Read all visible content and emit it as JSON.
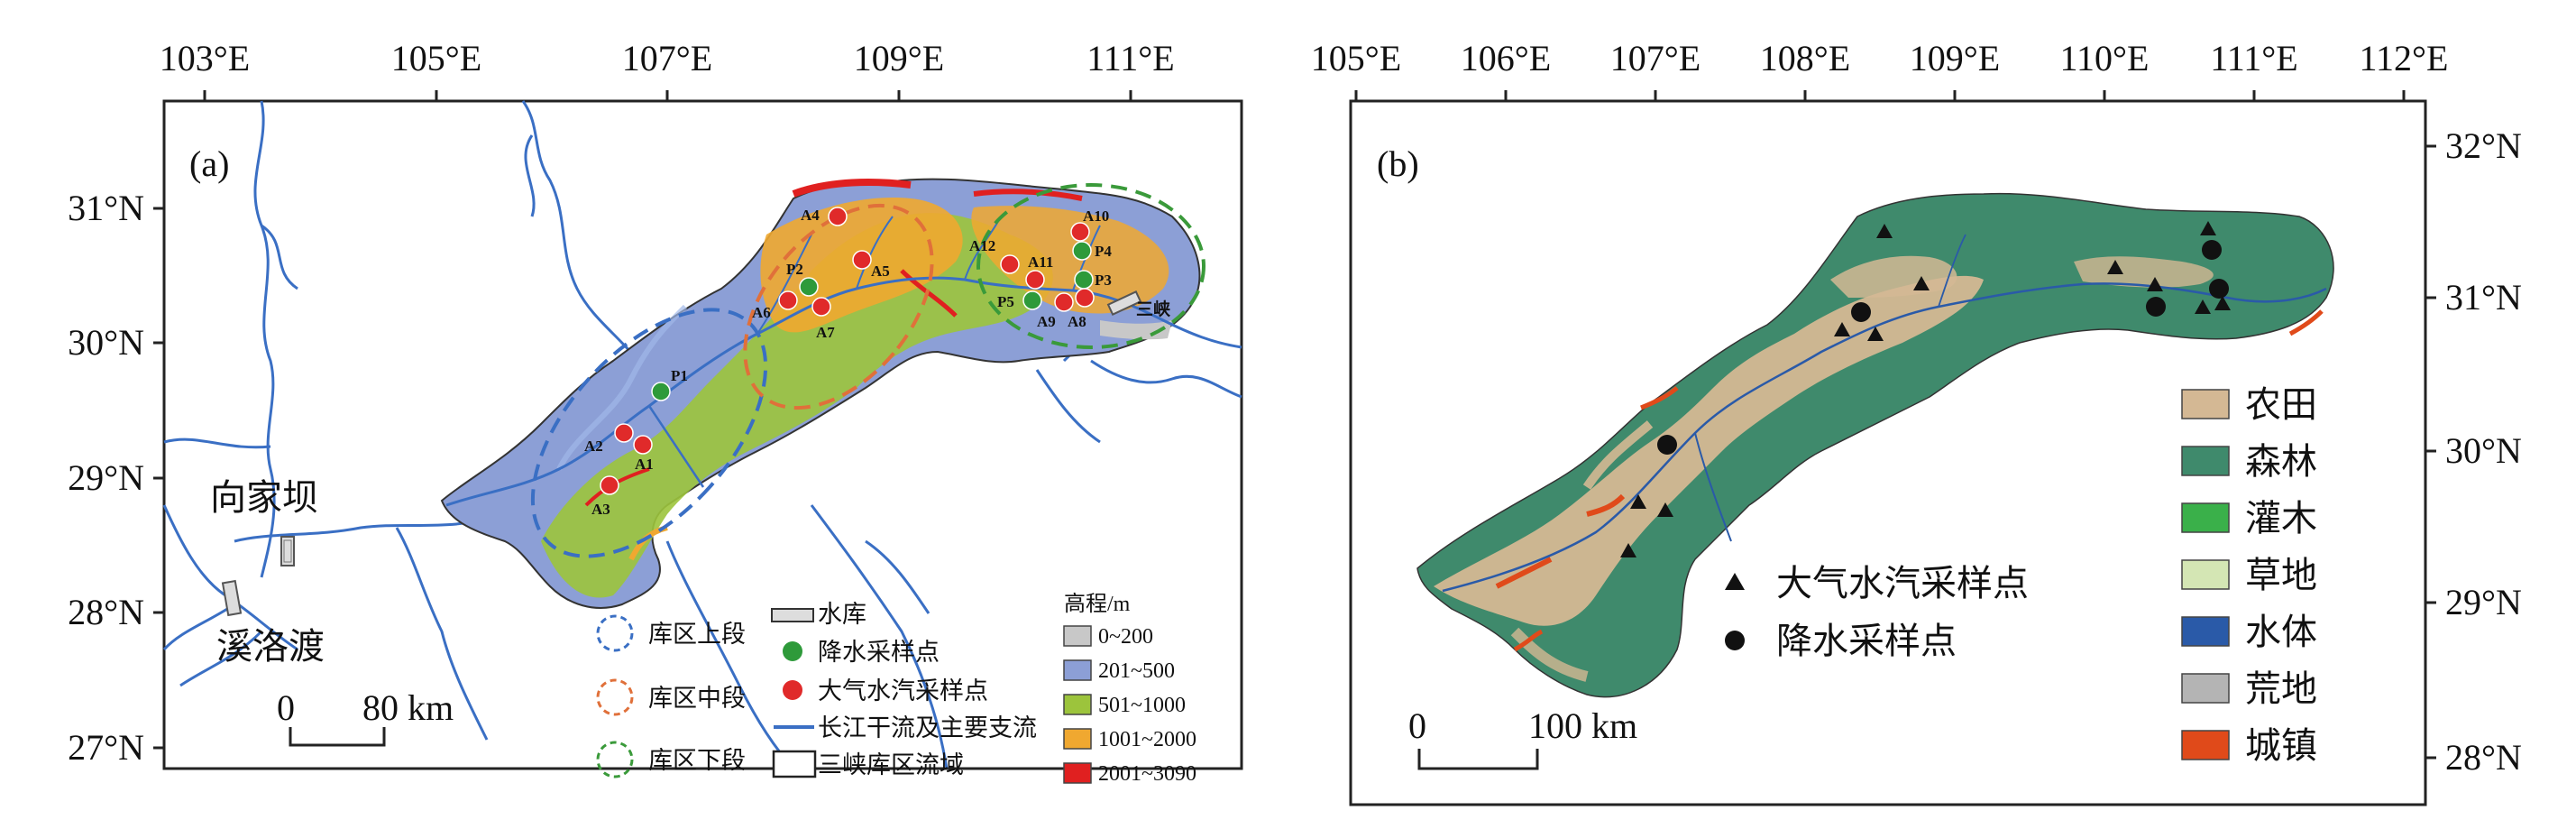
{
  "panel_a": {
    "label": "(a)",
    "lon_ticks": [
      "103°E",
      "105°E",
      "107°E",
      "109°E",
      "111°E"
    ],
    "lat_ticks": [
      "31°N",
      "30°N",
      "29°N",
      "28°N",
      "27°N"
    ],
    "place_names": {
      "xiangjiaba": "向家坝",
      "xiluodu": "溪洛渡",
      "sanxia": "三峡"
    },
    "scale": {
      "zero": "0",
      "value": "80 km"
    },
    "precip_sites": [
      "P1",
      "P2",
      "P3",
      "P4",
      "P5"
    ],
    "vapor_sites": [
      "A1",
      "A2",
      "A3",
      "A4",
      "A5",
      "A6",
      "A7",
      "A8",
      "A9",
      "A10",
      "A11",
      "A12"
    ],
    "legend_sections": [
      {
        "label": "库区上段",
        "color": "#3a6fc4"
      },
      {
        "label": "库区中段",
        "color": "#e0703a"
      },
      {
        "label": "库区下段",
        "color": "#3a9a3a"
      }
    ],
    "legend_symbols": {
      "reservoir": "水库",
      "precip": "降水采样点",
      "vapor": "大气水汽采样点",
      "river": "长江干流及主要支流",
      "basin": "三峡库区流域"
    },
    "elevation": {
      "title": "高程/m",
      "classes": [
        {
          "label": "0~200",
          "color": "#c8c8c8"
        },
        {
          "label": "201~500",
          "color": "#8c9fd6"
        },
        {
          "label": "501~1000",
          "color": "#9cc43c"
        },
        {
          "label": "1001~2000",
          "color": "#f0a830"
        },
        {
          "label": "2001~3090",
          "color": "#e02020"
        }
      ]
    },
    "colors": {
      "river": "#3a6fc4",
      "precip": "#2e9a3a",
      "vapor": "#e02a2a"
    }
  },
  "panel_b": {
    "label": "(b)",
    "lon_ticks": [
      "105°E",
      "106°E",
      "107°E",
      "108°E",
      "109°E",
      "110°E",
      "111°E",
      "112°E"
    ],
    "lat_ticks": [
      "32°N",
      "31°N",
      "30°N",
      "29°N",
      "28°N"
    ],
    "legend_points": {
      "vapor": "大气水汽采样点",
      "precip": "降水采样点"
    },
    "landcover": [
      {
        "label": "农田",
        "color": "#d4b894"
      },
      {
        "label": "森林",
        "color": "#3f8a6c"
      },
      {
        "label": "灌木",
        "color": "#3ab04a"
      },
      {
        "label": "草地",
        "color": "#d4e6b4"
      },
      {
        "label": "水体",
        "color": "#2a5aa8"
      },
      {
        "label": "荒地",
        "color": "#b4b4b4"
      },
      {
        "label": "城镇",
        "color": "#e04a1a"
      }
    ],
    "scale": {
      "zero": "0",
      "value": "100 km"
    }
  }
}
